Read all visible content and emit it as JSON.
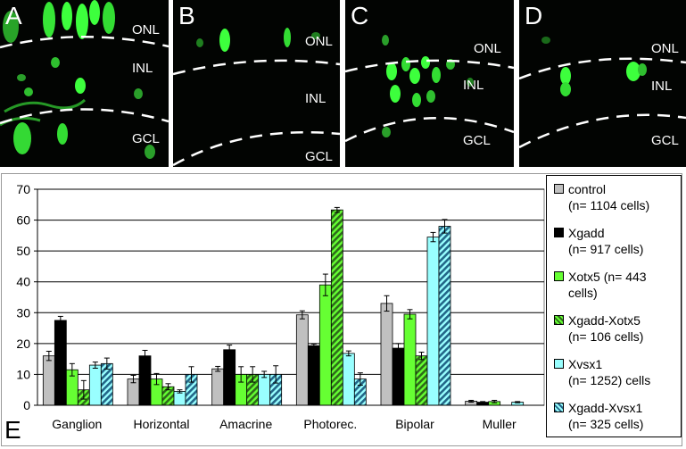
{
  "panels": [
    {
      "letter": "A",
      "layers": [
        "ONL",
        "INL",
        "GCL"
      ]
    },
    {
      "letter": "B",
      "layers": [
        "ONL",
        "INL",
        "GCL"
      ]
    },
    {
      "letter": "C",
      "layers": [
        "ONL",
        "INL",
        "GCL"
      ]
    },
    {
      "letter": "D",
      "layers": [
        "ONL",
        "INL",
        "GCL"
      ]
    }
  ],
  "panel_e_label": "E",
  "colors": {
    "control": "#c0c0c0",
    "xgadd": "#000000",
    "xotx5": "#66ff33",
    "xgadd_xotx5": "#2e6b1a",
    "xvsx1": "#99ffff",
    "xgadd_xvsx1": "#226688",
    "fluorescence": "#3dff3d"
  },
  "chart_data": {
    "type": "bar",
    "title": "",
    "xlabel": "",
    "ylabel": "",
    "ylim": [
      0,
      70
    ],
    "yticks": [
      0,
      10,
      20,
      30,
      40,
      50,
      60,
      70
    ],
    "grid": true,
    "legend_position": "right",
    "categories": [
      "Ganglion",
      "Horizontal",
      "Amacrine",
      "Photorec.",
      "Bipolar",
      "Muller"
    ],
    "series": [
      {
        "name": "control",
        "legend_lines": [
          "control",
          "(n= 1104 cells)"
        ],
        "pattern": "solid",
        "values": [
          16,
          8.5,
          11.8,
          29.3,
          33,
          1.3
        ],
        "errors": [
          1.5,
          1.2,
          0.8,
          1.3,
          2.5,
          0.3
        ]
      },
      {
        "name": "Xgadd",
        "legend_lines": [
          "Xgadd",
          "(n= 917 cells)"
        ],
        "pattern": "solid",
        "values": [
          27.5,
          16,
          18,
          19.3,
          18.5,
          1
        ],
        "errors": [
          1.3,
          1.8,
          1.5,
          0.5,
          1.5,
          0.2
        ]
      },
      {
        "name": "Xotx5",
        "legend_lines": [
          "Xotx5 (n= 443",
          "cells)"
        ],
        "pattern": "solid",
        "values": [
          11.5,
          8.5,
          10,
          39,
          29.5,
          1.2
        ],
        "errors": [
          2,
          1.8,
          2.5,
          3.5,
          1.5,
          0.4
        ]
      },
      {
        "name": "Xgadd-Xotx5",
        "legend_lines": [
          "Xgadd-Xotx5",
          "(n= 106 cells)"
        ],
        "pattern": "hatched",
        "values": [
          5,
          6,
          10,
          63.3,
          16,
          0
        ],
        "errors": [
          3,
          1,
          2.5,
          0.8,
          1.2,
          0
        ]
      },
      {
        "name": "Xvsx1",
        "legend_lines": [
          "Xvsx1",
          "(n= 1252) cells"
        ],
        "pattern": "solid",
        "values": [
          13,
          4.5,
          10,
          16.8,
          54.5,
          1
        ],
        "errors": [
          1,
          0.5,
          1,
          0.8,
          1.5,
          0.2
        ]
      },
      {
        "name": "Xgadd-Xvsx1",
        "legend_lines": [
          "Xgadd-Xvsx1",
          "(n= 325 cells)"
        ],
        "pattern": "hatched",
        "values": [
          13.5,
          10,
          10,
          8.5,
          58,
          0
        ],
        "errors": [
          1.8,
          2.5,
          2.8,
          2,
          2.2,
          0
        ]
      }
    ]
  }
}
